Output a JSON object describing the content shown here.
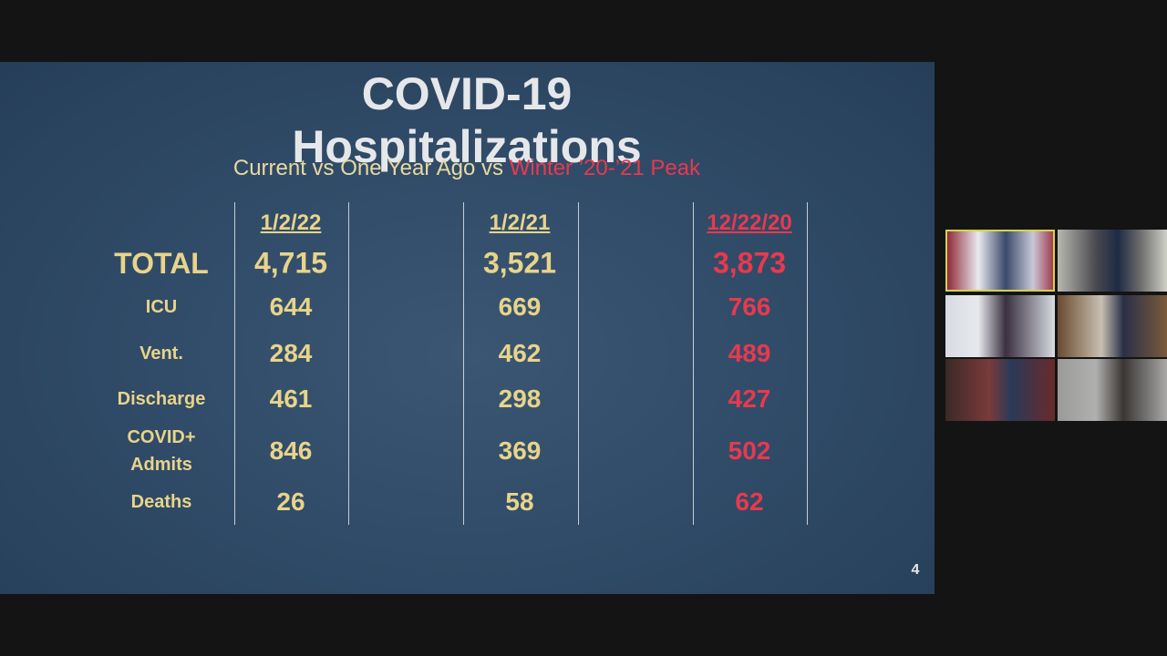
{
  "slide": {
    "title": "COVID-19 Hospitalizations",
    "subtitle": [
      "Current vs One Year Ago vs ",
      "Winter ’20-’21 Peak"
    ],
    "table": {
      "columns": [
        "1/2/22",
        "1/2/21",
        "12/22/20"
      ],
      "rows": [
        {
          "label": "TOTAL",
          "values": [
            "4,715",
            "3,521",
            "3,873"
          ]
        },
        {
          "label": "ICU",
          "values": [
            "644",
            "669",
            "766"
          ]
        },
        {
          "label": "Vent.",
          "values": [
            "284",
            "462",
            "489"
          ]
        },
        {
          "label": "Discharge",
          "values": [
            "461",
            "298",
            "427"
          ]
        },
        {
          "label": "COVID+\nAdmits",
          "values": [
            "846",
            "369",
            "502"
          ]
        },
        {
          "label": "Deaths",
          "values": [
            "26",
            "58",
            "62"
          ]
        }
      ]
    },
    "page_number": "4"
  }
}
